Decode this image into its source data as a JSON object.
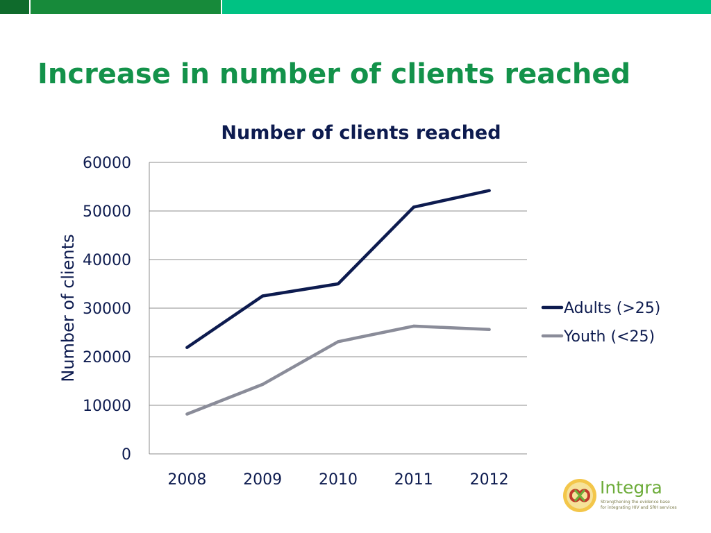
{
  "slide": {
    "title": "Increase in number of clients reached",
    "colors": {
      "title": "#13924a",
      "bar_dark": "#0f6b2c",
      "bar_mid": "#178a3a",
      "bar_light": "#00c283"
    }
  },
  "logo": {
    "name": "Integra",
    "tagline_1": "Strengthening the evidence base",
    "tagline_2": "for integrating HIV and SRH services",
    "icon": "integra-knot-icon"
  },
  "chart_data": {
    "type": "line",
    "title": "Number of clients reached",
    "xlabel": "",
    "ylabel": "Number of clients",
    "categories": [
      "2008",
      "2009",
      "2010",
      "2011",
      "2012"
    ],
    "ylim": [
      0,
      60000
    ],
    "yticks": [
      0,
      10000,
      20000,
      30000,
      40000,
      50000,
      60000
    ],
    "grid": true,
    "legend_position": "right",
    "series": [
      {
        "name": "Adults (>25)",
        "color": "#0d1b4f",
        "values": [
          21900,
          32500,
          35000,
          50800,
          54200
        ]
      },
      {
        "name": "Youth (<25)",
        "color": "#8a8c99",
        "values": [
          8200,
          14300,
          23100,
          26300,
          25600
        ]
      }
    ]
  }
}
